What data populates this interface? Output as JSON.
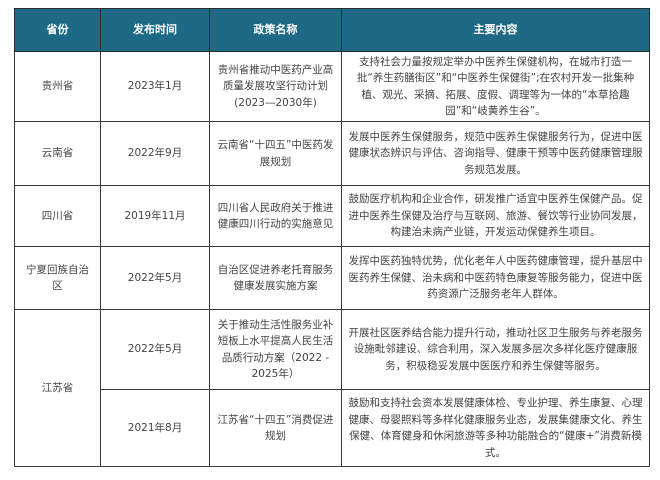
{
  "header": {
    "province": "省份",
    "date": "发布时间",
    "policy": "政策名称",
    "content": "主要内容"
  },
  "rows": [
    {
      "province": "贵州省",
      "date": "2023年1月",
      "policy": "贵州省推动中医药产业高质量发展攻坚行动计划(2023—2030年)",
      "content": "支持社会力量按规定举办中医养生保健机构，在城市打造一批“养生药膳街区”和“中医养生保健街”;在农村开发一批集种植、观光、采摘、拓展、度假、调理等为一体的“本草拾趣园”和“岐黄养生谷”。"
    },
    {
      "province": "云南省",
      "date": "2022年9月",
      "policy": "云南省“十四五”中医药发展规划",
      "content": "发展中医养生保健服务，规范中医养生保健服务行为，促进中医健康状态辨识与评估、咨询指导、健康干预等中医药健康管理服务规范发展。"
    },
    {
      "province": "四川省",
      "date": "2019年11月",
      "policy": "四川省人民政府关于推进健康四川行动的实施意见",
      "content": "鼓励医疗机构和企业合作，研发推广适宜中医养生保健产品。促进中医养生保健及治疗与互联网、旅游、餐饮等行业协同发展，构建治未病产业链，开发运动保健养生项目。"
    },
    {
      "province": "宁夏回族自治区",
      "date": "2022年5月",
      "policy": "自治区促进养老托育服务健康发展实施方案",
      "content": "发挥中医药独特优势，优化老年人中医药健康管理，提升基层中医药养生保健、治未病和中医药特色康复等服务能力，促进中医药资源广泛服务老年人群体。"
    },
    {
      "province": "江苏省",
      "date": "2022年5月",
      "policy": "关于推动生活性服务业补短板上水平提高人民生活品质行动方案（2022 - 2025年）",
      "content": "开展社区医养结合能力提升行动，推动社区卫生服务与养老服务设施毗邻建设、综合利用，深入发展多层次多样化医疗健康服务，积极稳妥发展中医医疗和养生保健等服务。"
    },
    {
      "date": "2021年8月",
      "policy": "江苏省“十四五”消费促进规划",
      "content": "鼓励和支持社会资本发展健康体检、专业护理、养生康复、心理健康、母婴照料等多样化健康服务业态，发展集健康文化、养生保健、体育健身和休闲旅游等多种功能融合的“健康+”消费新模式。"
    }
  ],
  "colors": {
    "header_bg": "#1e6a86",
    "header_text": "#ffffff",
    "border": "#3a3a3a"
  }
}
